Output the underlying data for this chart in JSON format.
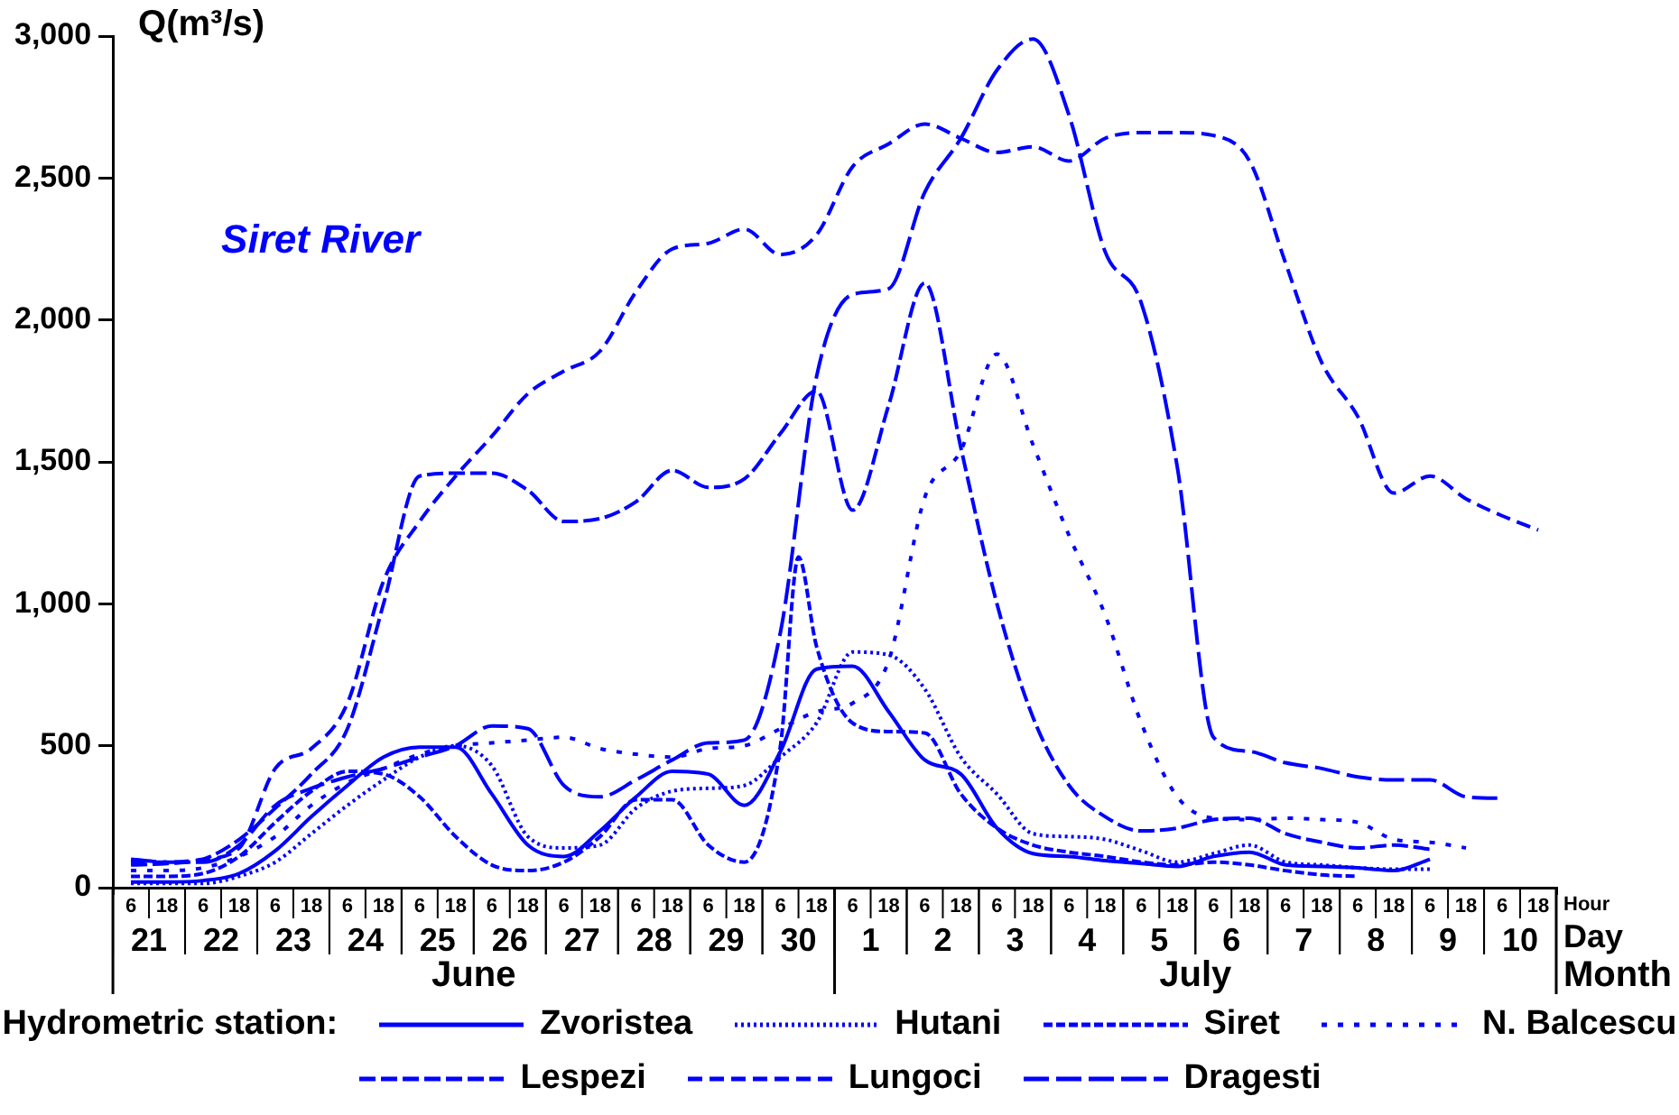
{
  "chart_data": {
    "type": "line",
    "title": "Siret River",
    "ylabel": "Q(m³/s)",
    "xlabel": "Hour\nDay\nMonth",
    "legend_title": "Hydrometric station:",
    "legend": "bottom",
    "grid": false,
    "annotations": [
      "June",
      "July"
    ],
    "ylim": [
      0,
      3000
    ],
    "yticks": [
      0,
      500,
      {
        "value": 1000,
        "label": "1,000"
      },
      {
        "value": 1500,
        "label": "1,500"
      },
      {
        "value": 2000,
        "label": "2,000"
      },
      {
        "value": 2500,
        "label": "2,500"
      },
      {
        "value": 3000,
        "label": "3,000"
      }
    ],
    "xlim": [
      "--06-21T00:00",
      "--07-11T00:00"
    ],
    "xticks": [
      {
        "value": "--06-21T12:00",
        "label": "21"
      },
      {
        "value": "--06-22T12:00",
        "label": "22"
      },
      {
        "value": "--06-23T12:00",
        "label": "23"
      },
      {
        "value": "--06-24T12:00",
        "label": "24"
      },
      {
        "value": "--06-25T12:00",
        "label": "25"
      },
      {
        "value": "--06-26T12:00",
        "label": "26"
      },
      {
        "value": "--06-27T12:00",
        "label": "27"
      },
      {
        "value": "--06-28T12:00",
        "label": "28"
      },
      {
        "value": "--06-29T12:00",
        "label": "29"
      },
      {
        "value": "--06-30T12:00",
        "label": "30"
      },
      {
        "value": "--07-01T12:00",
        "label": "1"
      },
      {
        "value": "--07-02T12:00",
        "label": "2"
      },
      {
        "value": "--07-03T12:00",
        "label": "3"
      },
      {
        "value": "--07-04T12:00",
        "label": "4"
      },
      {
        "value": "--07-05T12:00",
        "label": "5"
      },
      {
        "value": "--07-06T12:00",
        "label": "6"
      },
      {
        "value": "--07-07T12:00",
        "label": "7"
      },
      {
        "value": "--07-08T12:00",
        "label": "8"
      },
      {
        "value": "--07-09T12:00",
        "label": "9"
      },
      {
        "value": "--07-10T12:00",
        "label": "10"
      }
    ],
    "x2lim": [
      "--06-21T00:00",
      "--07-11T00:00"
    ],
    "x2ticks": [
      {
        "value": "--06-21T00:00",
        "label": null
      },
      {
        "value": "--07-01T00:00",
        "label": null
      },
      {
        "value": "--07-11T00:00",
        "label": null
      },
      {
        "value": "--06-21T06:00",
        "label": "6"
      },
      {
        "value": "--06-21T18:00",
        "label": "18"
      },
      {
        "value": "--06-22T06:00",
        "label": "6"
      },
      {
        "value": "--06-22T18:00",
        "label": "18"
      },
      {
        "value": "--06-23T06:00",
        "label": "6"
      },
      {
        "value": "--06-23T18:00",
        "label": "18"
      },
      {
        "value": "--06-24T06:00",
        "label": "6"
      },
      {
        "value": "--06-24T18:00",
        "label": "18"
      },
      {
        "value": "--06-25T06:00",
        "label": "6"
      },
      {
        "value": "--06-25T18:00",
        "label": "18"
      },
      {
        "value": "--06-26T06:00",
        "label": "6"
      },
      {
        "value": "--06-26T18:00",
        "label": "18"
      },
      {
        "value": "--06-27T06:00",
        "label": "6"
      },
      {
        "value": "--06-27T18:00",
        "label": "18"
      },
      {
        "value": "--06-28T06:00",
        "label": "6"
      },
      {
        "value": "--06-28T18:00",
        "label": "18"
      },
      {
        "value": "--06-29T06:00",
        "label": "6"
      },
      {
        "value": "--06-29T18:00",
        "label": "18"
      },
      {
        "value": "--06-30T06:00",
        "label": "6"
      },
      {
        "value": "--06-30T18:00",
        "label": "18"
      },
      {
        "value": "--07-01T06:00",
        "label": "6"
      },
      {
        "value": "--07-01T18:00",
        "label": "18"
      },
      {
        "value": "--07-02T06:00",
        "label": "6"
      },
      {
        "value": "--07-02T18:00",
        "label": "18"
      },
      {
        "value": "--07-03T06:00",
        "label": "6"
      },
      {
        "value": "--07-03T18:00",
        "label": "18"
      },
      {
        "value": "--07-04T06:00",
        "label": "6"
      },
      {
        "value": "--07-04T18:00",
        "label": "18"
      },
      {
        "value": "--07-05T06:00",
        "label": "6"
      },
      {
        "value": "--07-05T18:00",
        "label": "18"
      },
      {
        "value": "--07-06T06:00",
        "label": "6"
      },
      {
        "value": "--07-06T18:00",
        "label": "18"
      },
      {
        "value": "--07-07T06:00",
        "label": "6"
      },
      {
        "value": "--07-07T18:00",
        "label": "18"
      },
      {
        "value": "--07-08T06:00",
        "label": "6"
      },
      {
        "value": "--07-08T18:00",
        "label": "18"
      },
      {
        "value": "--07-09T06:00",
        "label": "6"
      },
      {
        "value": "--07-09T18:00",
        "label": "18"
      },
      {
        "value": "--07-10T06:00",
        "label": "6"
      },
      {
        "value": "--07-10T18:00",
        "label": "18"
      }
    ],
    "x": [
      "--06-21T06:00",
      "--06-21T18:00",
      "--06-22T06:00",
      "--06-22T18:00",
      "--06-23T06:00",
      "--06-23T18:00",
      "--06-24T06:00",
      "--06-24T18:00",
      "--06-25T06:00",
      "--06-25T18:00",
      "--06-26T06:00",
      "--06-26T18:00",
      "--06-27T06:00",
      "--06-27T18:00",
      "--06-28T06:00",
      "--06-28T18:00",
      "--06-29T06:00",
      "--06-29T18:00",
      "--06-30T06:00",
      "--06-30T18:00",
      "--07-01T06:00",
      "--07-01T18:00",
      "--07-02T06:00",
      "--07-02T18:00",
      "--07-03T06:00",
      "--07-03T18:00",
      "--07-04T06:00",
      "--07-04T18:00",
      "--07-05T06:00",
      "--07-05T18:00",
      "--07-06T06:00",
      "--07-06T18:00",
      "--07-07T06:00",
      "--07-07T18:00",
      "--07-08T06:00",
      "--07-08T18:00",
      "--07-09T06:00",
      "--07-09T18:00",
      "--07-10T06:00",
      "--07-10T18:00"
    ],
    "series": [
      {
        "name": "Zvoristea",
        "color": "#0000ff",
        "line_style": "solid",
        "values": [
          20,
          20,
          25,
          50,
          130,
          250,
          360,
          460,
          495,
          495,
          330,
          150,
          110,
          200,
          320,
          410,
          400,
          290,
          480,
          770,
          780,
          620,
          450,
          400,
          210,
          120,
          110,
          95,
          85,
          75,
          110,
          125,
          80,
          75,
          70,
          60,
          100,
          null,
          null,
          null
        ]
      },
      {
        "name": "Hutani",
        "color": "#0000ff",
        "line_style": "dotted",
        "values": [
          15,
          15,
          15,
          40,
          90,
          190,
          290,
          380,
          460,
          500,
          430,
          180,
          140,
          150,
          280,
          340,
          350,
          360,
          460,
          580,
          830,
          820,
          700,
          460,
          330,
          190,
          180,
          170,
          130,
          90,
          120,
          150,
          90,
          80,
          70,
          65,
          65,
          null,
          null,
          null
        ]
      },
      {
        "name": "Siret",
        "color": "#0000ff",
        "line_style": "dashed",
        "x": [
          "--06-21T06:00",
          "--06-21T18:00",
          "--06-22T06:00",
          "--06-22T18:00",
          "--06-23T06:00",
          "--06-23T18:00",
          "--06-24T06:00",
          "--06-24T18:00",
          "--06-25T06:00",
          "--06-25T18:00",
          "--06-26T06:00",
          "--06-26T18:00",
          "--06-27T06:00",
          "--06-27T18:00",
          "--06-28T06:00",
          "--06-28T18:00",
          "--06-29T06:00",
          "--06-29T18:00",
          "--06-30T06:00",
          "--06-30T12:00",
          "--06-30T18:00",
          "--07-01T06:00",
          "--07-01T18:00",
          "--07-02T06:00",
          "--07-02T18:00",
          "--07-03T06:00",
          "--07-03T18:00",
          "--07-04T06:00",
          "--07-04T18:00",
          "--07-05T06:00",
          "--07-05T18:00",
          "--07-06T06:00",
          "--07-06T18:00",
          "--07-07T06:00",
          "--07-07T18:00",
          "--07-08T06:00"
        ],
        "values": [
          40,
          40,
          50,
          110,
          230,
          340,
          410,
          400,
          320,
          180,
          80,
          60,
          90,
          180,
          310,
          310,
          150,
          90,
          500,
          1165,
          850,
          580,
          550,
          545,
          330,
          210,
          150,
          125,
          110,
          90,
          80,
          90,
          80,
          60,
          45,
          40
        ]
      },
      {
        "name": "N. Balcescu",
        "color": "#0000ff",
        "line_style": "dashed",
        "values": [
          60,
          60,
          70,
          110,
          180,
          290,
          370,
          420,
          470,
          500,
          510,
          520,
          530,
          490,
          470,
          460,
          490,
          500,
          560,
          620,
          650,
          800,
          1375,
          1540,
          1880,
          1560,
          1240,
          960,
          580,
          320,
          245,
          240,
          245,
          240,
          230,
          170,
          160,
          140,
          null,
          null
        ]
      },
      {
        "name": "Lespezi",
        "color": "#0000ff",
        "line_style": "dashed",
        "values": [
          80,
          85,
          100,
          170,
          280,
          400,
          560,
          1000,
          1450,
          1460,
          1460,
          1400,
          1290,
          1300,
          1360,
          1470,
          1410,
          1440,
          1600,
          1750,
          1330,
          1700,
          2130,
          1550,
          1000,
          600,
          360,
          250,
          200,
          210,
          240,
          245,
          190,
          160,
          140,
          150,
          135,
          null,
          null,
          null
        ]
      },
      {
        "name": "Lungoci",
        "color": "#0000ff",
        "line_style": "dashed",
        "values": [
          90,
          90,
          100,
          140,
          420,
          490,
          650,
          1080,
          1290,
          1450,
          1590,
          1740,
          1820,
          1890,
          2100,
          2250,
          2270,
          2320,
          2230,
          2300,
          2540,
          2620,
          2690,
          2640,
          2590,
          2610,
          2560,
          2640,
          2660,
          2660,
          2650,
          2560,
          2200,
          1850,
          1660,
          1390,
          1450,
          1370,
          1310,
          1260
        ]
      },
      {
        "name": "Dragesti",
        "color": "#0000ff",
        "line_style": "dashed",
        "values": [
          100,
          90,
          90,
          150,
          290,
          350,
          390,
          420,
          460,
          500,
          570,
          560,
          360,
          320,
          380,
          450,
          510,
          520,
          900,
          1800,
          2090,
          2110,
          2450,
          2640,
          2880,
          2990,
          2720,
          2240,
          2060,
          1480,
          530,
          480,
          440,
          420,
          390,
          380,
          380,
          320,
          315,
          null
        ]
      }
    ]
  }
}
